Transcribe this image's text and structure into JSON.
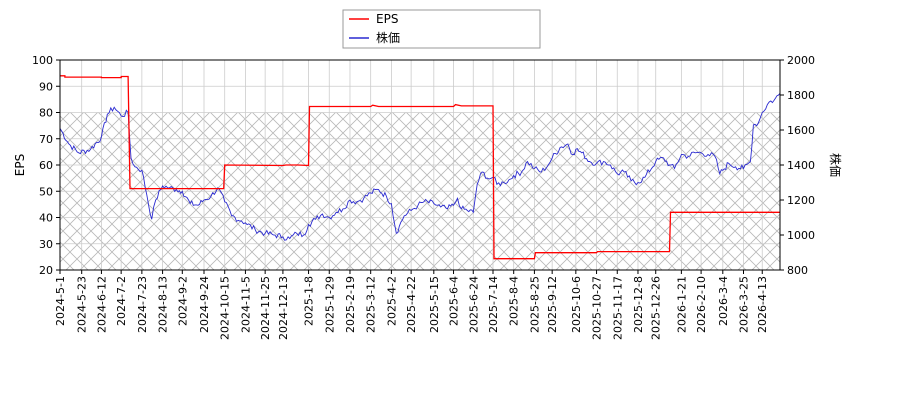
{
  "chart_data": {
    "type": "line",
    "legend_position": "top-center",
    "grid": true,
    "shaded_band": {
      "y_from": 20,
      "y_to": 80,
      "axis": "left",
      "pattern": "crosshatch"
    },
    "colors": {
      "EPS": "#ff0000",
      "株価": "#2a2ad0",
      "band": "#b8b8b8",
      "grid": "#cccccc"
    },
    "left_axis": {
      "label": "EPS",
      "min": 20,
      "max": 100,
      "ticks": [
        20,
        30,
        40,
        50,
        60,
        70,
        80,
        90,
        100
      ]
    },
    "right_axis": {
      "label": "株価",
      "min": 800,
      "max": 2000,
      "ticks": [
        800,
        1000,
        1200,
        1400,
        1600,
        1800,
        2000
      ]
    },
    "x_axis": {
      "start": "2024-5-1",
      "end": "2026-5-1",
      "tick_labels": [
        "2024-5-1",
        "2024-5-23",
        "2024-6-12",
        "2024-7-2",
        "2024-7-23",
        "2024-8-13",
        "2024-9-2",
        "2024-9-24",
        "2024-10-15",
        "2024-11-5",
        "2024-11-25",
        "2024-12-13",
        "2025-1-8",
        "2025-1-29",
        "2025-2-19",
        "2025-3-12",
        "2025-4-2",
        "2025-4-22",
        "2025-5-15",
        "2025-6-4",
        "2025-6-24",
        "2025-7-14",
        "2025-8-4",
        "2025-8-25",
        "2025-9-12",
        "2025-10-6",
        "2025-10-27",
        "2025-11-17",
        "2025-12-8",
        "2025-12-26",
        "2026-1-21",
        "2026-2-10",
        "2026-3-4",
        "2026-3-25",
        "2026-4-13"
      ]
    },
    "series": [
      {
        "name": "EPS",
        "axis": "left",
        "points": [
          [
            "2024-5-1",
            94
          ],
          [
            "2024-5-6",
            94
          ],
          [
            "2024-5-6",
            93.5
          ],
          [
            "2024-6-12",
            93.5
          ],
          [
            "2024-6-12",
            93.3
          ],
          [
            "2024-7-2",
            93.3
          ],
          [
            "2024-7-2",
            93.7
          ],
          [
            "2024-7-9",
            93.7
          ],
          [
            "2024-7-11",
            51
          ],
          [
            "2024-10-14",
            51
          ],
          [
            "2024-10-15",
            60
          ],
          [
            "2024-12-13",
            59.8
          ],
          [
            "2024-12-16",
            60
          ],
          [
            "2024-12-28",
            60
          ],
          [
            "2025-1-8",
            59.8
          ],
          [
            "2025-1-9",
            82.3
          ],
          [
            "2025-3-12",
            82.3
          ],
          [
            "2025-3-14",
            82.8
          ],
          [
            "2025-3-20",
            82.3
          ],
          [
            "2025-6-4",
            82.3
          ],
          [
            "2025-6-6",
            83
          ],
          [
            "2025-6-12",
            82.5
          ],
          [
            "2025-7-14",
            82.5
          ],
          [
            "2025-7-15",
            24.3
          ],
          [
            "2025-8-25",
            24.3
          ],
          [
            "2025-8-26",
            26.6
          ],
          [
            "2025-10-27",
            26.6
          ],
          [
            "2025-10-28",
            27
          ],
          [
            "2026-1-9",
            27
          ],
          [
            "2026-1-10",
            42
          ],
          [
            "2026-5-1",
            42
          ]
        ]
      },
      {
        "name": "株価",
        "axis": "right",
        "points": [
          [
            "2024-5-1",
            1610
          ],
          [
            "2024-5-10",
            1520
          ],
          [
            "2024-5-20",
            1470
          ],
          [
            "2024-6-1",
            1490
          ],
          [
            "2024-6-12",
            1560
          ],
          [
            "2024-6-18",
            1690
          ],
          [
            "2024-6-25",
            1730
          ],
          [
            "2024-7-2",
            1680
          ],
          [
            "2024-7-9",
            1700
          ],
          [
            "2024-7-12",
            1440
          ],
          [
            "2024-7-16",
            1390
          ],
          [
            "2024-7-23",
            1370
          ],
          [
            "2024-7-28",
            1230
          ],
          [
            "2024-8-2",
            1090
          ],
          [
            "2024-8-6",
            1200
          ],
          [
            "2024-8-13",
            1280
          ],
          [
            "2024-8-20",
            1270
          ],
          [
            "2024-8-27",
            1260
          ],
          [
            "2024-9-2",
            1250
          ],
          [
            "2024-9-10",
            1180
          ],
          [
            "2024-9-18",
            1170
          ],
          [
            "2024-9-24",
            1200
          ],
          [
            "2024-10-1",
            1220
          ],
          [
            "2024-10-8",
            1270
          ],
          [
            "2024-10-15",
            1190
          ],
          [
            "2024-10-22",
            1110
          ],
          [
            "2024-11-1",
            1080
          ],
          [
            "2024-11-5",
            1070
          ],
          [
            "2024-11-15",
            1030
          ],
          [
            "2024-11-25",
            1010
          ],
          [
            "2024-12-5",
            1000
          ],
          [
            "2024-12-13",
            990
          ],
          [
            "2024-12-20",
            980
          ],
          [
            "2024-12-27",
            1010
          ],
          [
            "2025-1-3",
            1000
          ],
          [
            "2025-1-8",
            1060
          ],
          [
            "2025-1-15",
            1090
          ],
          [
            "2025-1-22",
            1120
          ],
          [
            "2025-1-29",
            1100
          ],
          [
            "2025-2-5",
            1130
          ],
          [
            "2025-2-12",
            1150
          ],
          [
            "2025-2-19",
            1200
          ],
          [
            "2025-2-26",
            1190
          ],
          [
            "2025-3-5",
            1210
          ],
          [
            "2025-3-12",
            1240
          ],
          [
            "2025-3-20",
            1260
          ],
          [
            "2025-3-28",
            1220
          ],
          [
            "2025-4-2",
            1180
          ],
          [
            "2025-4-7",
            1010
          ],
          [
            "2025-4-10",
            1050
          ],
          [
            "2025-4-15",
            1110
          ],
          [
            "2025-4-22",
            1140
          ],
          [
            "2025-4-29",
            1170
          ],
          [
            "2025-5-5",
            1190
          ],
          [
            "2025-5-15",
            1180
          ],
          [
            "2025-5-22",
            1160
          ],
          [
            "2025-5-29",
            1150
          ],
          [
            "2025-6-4",
            1170
          ],
          [
            "2025-6-8",
            1210
          ],
          [
            "2025-6-12",
            1150
          ],
          [
            "2025-6-18",
            1140
          ],
          [
            "2025-6-24",
            1130
          ],
          [
            "2025-6-28",
            1290
          ],
          [
            "2025-7-3",
            1360
          ],
          [
            "2025-7-10",
            1320
          ],
          [
            "2025-7-14",
            1330
          ],
          [
            "2025-7-18",
            1290
          ],
          [
            "2025-7-25",
            1300
          ],
          [
            "2025-8-1",
            1320
          ],
          [
            "2025-8-4",
            1340
          ],
          [
            "2025-8-12",
            1360
          ],
          [
            "2025-8-18",
            1420
          ],
          [
            "2025-8-25",
            1380
          ],
          [
            "2025-9-1",
            1360
          ],
          [
            "2025-9-8",
            1400
          ],
          [
            "2025-9-12",
            1440
          ],
          [
            "2025-9-20",
            1500
          ],
          [
            "2025-9-28",
            1520
          ],
          [
            "2025-10-3",
            1460
          ],
          [
            "2025-10-6",
            1490
          ],
          [
            "2025-10-12",
            1470
          ],
          [
            "2025-10-20",
            1420
          ],
          [
            "2025-10-27",
            1410
          ],
          [
            "2025-11-3",
            1420
          ],
          [
            "2025-11-10",
            1400
          ],
          [
            "2025-11-17",
            1350
          ],
          [
            "2025-11-24",
            1360
          ],
          [
            "2025-12-1",
            1310
          ],
          [
            "2025-12-8",
            1300
          ],
          [
            "2025-12-15",
            1330
          ],
          [
            "2025-12-26",
            1420
          ],
          [
            "2026-1-3",
            1440
          ],
          [
            "2026-1-9",
            1400
          ],
          [
            "2026-1-14",
            1380
          ],
          [
            "2026-1-21",
            1460
          ],
          [
            "2026-1-28",
            1450
          ],
          [
            "2026-2-4",
            1470
          ],
          [
            "2026-2-10",
            1470
          ],
          [
            "2026-2-17",
            1460
          ],
          [
            "2026-2-24",
            1450
          ],
          [
            "2026-3-1",
            1350
          ],
          [
            "2026-3-4",
            1370
          ],
          [
            "2026-3-10",
            1410
          ],
          [
            "2026-3-17",
            1390
          ],
          [
            "2026-3-25",
            1380
          ],
          [
            "2026-4-1",
            1420
          ],
          [
            "2026-4-4",
            1630
          ],
          [
            "2026-4-9",
            1640
          ],
          [
            "2026-4-13",
            1700
          ],
          [
            "2026-4-20",
            1760
          ],
          [
            "2026-4-25",
            1770
          ],
          [
            "2026-5-1",
            1810
          ]
        ]
      }
    ]
  }
}
